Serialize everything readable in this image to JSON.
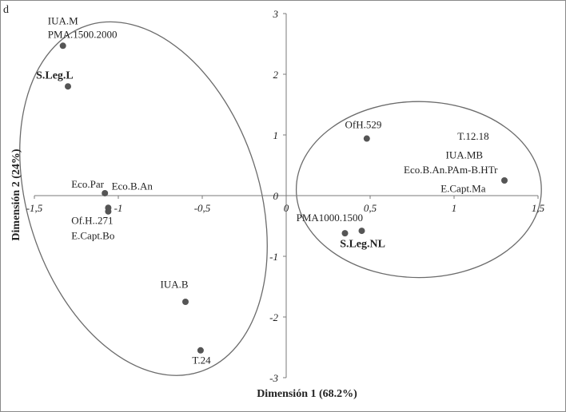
{
  "chart_data": {
    "type": "scatter",
    "panel_label": "d",
    "xlabel": "Dimensión 1 (68.2%)",
    "ylabel": "Dimensión 2 (24%)",
    "xlim": [
      -1.5,
      1.5
    ],
    "ylim": [
      -3,
      3
    ],
    "xticks": [
      {
        "value": -1.5,
        "label": "-1,5"
      },
      {
        "value": -1,
        "label": "-1"
      },
      {
        "value": -0.5,
        "label": "-0,5"
      },
      {
        "value": 0,
        "label": "0"
      },
      {
        "value": 0.5,
        "label": "0,5"
      },
      {
        "value": 1,
        "label": "1"
      },
      {
        "value": 1.5,
        "label": "1,5"
      }
    ],
    "yticks": [
      {
        "value": 3,
        "label": "3"
      },
      {
        "value": 2,
        "label": "2"
      },
      {
        "value": 1,
        "label": "1"
      },
      {
        "value": 0,
        "label": "0"
      },
      {
        "value": -1,
        "label": "-1"
      },
      {
        "value": -2,
        "label": "-2"
      },
      {
        "value": -3,
        "label": "-3"
      }
    ],
    "grid": false,
    "legend": "none",
    "point_color": "#555555",
    "points": [
      {
        "x": -1.33,
        "y": 2.47
      },
      {
        "x": -1.3,
        "y": 1.8
      },
      {
        "x": -1.08,
        "y": 0.04
      },
      {
        "x": -1.06,
        "y": -0.2
      },
      {
        "x": -1.06,
        "y": -0.26
      },
      {
        "x": -0.6,
        "y": -1.75
      },
      {
        "x": -0.51,
        "y": -2.55
      },
      {
        "x": 0.48,
        "y": 0.94
      },
      {
        "x": 1.3,
        "y": 0.25
      },
      {
        "x": 0.35,
        "y": -0.62
      },
      {
        "x": 0.45,
        "y": -0.58
      }
    ],
    "annotations": [
      {
        "text": "IUA.M",
        "x": -1.42,
        "y": 2.82,
        "anchor": "start",
        "bold": false
      },
      {
        "text": "PMA.1500.2000",
        "x": -1.42,
        "y": 2.6,
        "anchor": "start",
        "bold": false
      },
      {
        "text": "S.Leg.L",
        "x": -1.49,
        "y": 1.93,
        "anchor": "start",
        "bold": true
      },
      {
        "text": "Eco.Par",
        "x": -1.28,
        "y": 0.13,
        "anchor": "start",
        "bold": false
      },
      {
        "text": "Eco.B.An",
        "x": -1.04,
        "y": 0.1,
        "anchor": "start",
        "bold": false
      },
      {
        "text": "Of.H..271",
        "x": -1.28,
        "y": -0.47,
        "anchor": "start",
        "bold": false
      },
      {
        "text": "E.Capt.Bo",
        "x": -1.28,
        "y": -0.72,
        "anchor": "start",
        "bold": false
      },
      {
        "text": "IUA.B",
        "x": -0.75,
        "y": -1.52,
        "anchor": "start",
        "bold": false
      },
      {
        "text": "T.24",
        "x": -0.56,
        "y": -2.77,
        "anchor": "start",
        "bold": false
      },
      {
        "text": "OfH.529",
        "x": 0.35,
        "y": 1.11,
        "anchor": "start",
        "bold": false
      },
      {
        "text": "T.12.18",
        "x": 1.02,
        "y": 0.92,
        "anchor": "start",
        "bold": false
      },
      {
        "text": "IUA.MB",
        "x": 0.95,
        "y": 0.61,
        "anchor": "start",
        "bold": false
      },
      {
        "text": "Eco.B.An.PAm-B.HTr",
        "x": 0.7,
        "y": 0.37,
        "anchor": "start",
        "bold": false
      },
      {
        "text": "E.Capt.Ma",
        "x": 0.92,
        "y": 0.06,
        "anchor": "start",
        "bold": false
      },
      {
        "text": "PMA1000.1500",
        "x": 0.06,
        "y": -0.42,
        "anchor": "start",
        "bold": false
      },
      {
        "text": "S.Leg.NL",
        "x": 0.32,
        "y": -0.85,
        "anchor": "start",
        "bold": true
      }
    ],
    "ellipses": [
      {
        "cx": -0.85,
        "cy": -0.05,
        "rx": 0.69,
        "ry": 3.0,
        "rotation": -18
      },
      {
        "cx": 0.79,
        "cy": 0.1,
        "rx": 0.73,
        "ry": 1.45,
        "rotation": 0
      }
    ]
  }
}
